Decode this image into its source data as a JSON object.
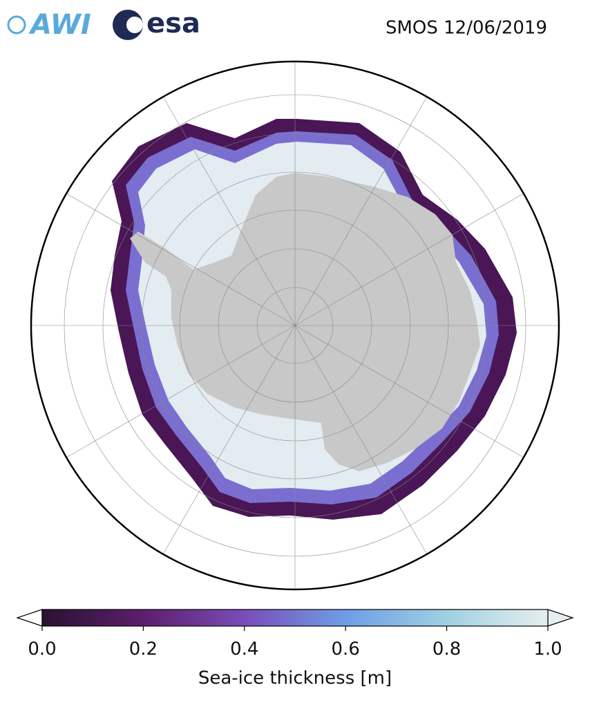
{
  "header": {
    "logos": [
      "AWI",
      "esa"
    ],
    "title": "SMOS 12/06/2019"
  },
  "colorbar": {
    "label": "Sea-ice thickness [m]",
    "range": [
      0,
      1
    ],
    "ticks": [
      {
        "value": 0,
        "label": "0.0"
      },
      {
        "value": 0.2,
        "label": "0.2"
      },
      {
        "value": 0.4,
        "label": "0.4"
      },
      {
        "value": 0.6,
        "label": "0.6"
      },
      {
        "value": 0.8,
        "label": "0.8"
      },
      {
        "value": 1,
        "label": "1.0"
      }
    ],
    "colors": [
      "#2a1231",
      "#5c1f6c",
      "#7a4db8",
      "#6e9de6",
      "#9fd0e2",
      "#e6eeee"
    ]
  }
}
